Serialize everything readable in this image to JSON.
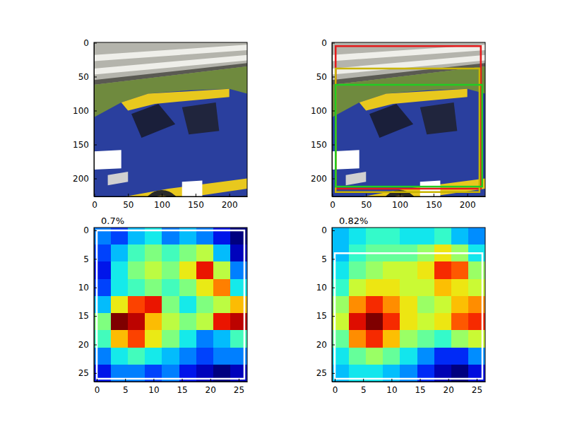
{
  "chart_data": [
    {
      "type": "image",
      "xlim": [
        -0.5,
        226.5
      ],
      "ylim": [
        226.5,
        -0.5
      ],
      "xticks": [
        0,
        50,
        100,
        150,
        200
      ],
      "yticks": [
        0,
        50,
        100,
        150,
        200
      ],
      "boxes": []
    },
    {
      "type": "image",
      "xlim": [
        -0.5,
        226.5
      ],
      "ylim": [
        226.5,
        -0.5
      ],
      "xticks": [
        0,
        50,
        100,
        150,
        200
      ],
      "yticks": [
        0,
        50,
        100,
        150,
        200
      ],
      "boxes": [
        {
          "color": "#e41a1c",
          "x0": 5,
          "y0": 5,
          "x1": 220,
          "y1": 215
        },
        {
          "color": "#c8b400",
          "x0": 5,
          "y0": 38,
          "x1": 218,
          "y1": 220
        },
        {
          "color": "#22cc22",
          "x0": 5,
          "y0": 62,
          "x1": 222,
          "y1": 212
        }
      ]
    },
    {
      "type": "heatmap",
      "title": "0.7%",
      "xlim": [
        -0.5,
        26.5
      ],
      "ylim": [
        26.5,
        -0.5
      ],
      "xticks": [
        0,
        5,
        10,
        15,
        20,
        25
      ],
      "yticks": [
        0,
        5,
        10,
        15,
        20,
        25
      ],
      "cells": [
        [
          0.3,
          0.25,
          0.35,
          0.4,
          0.3,
          0.35,
          0.3,
          0.2,
          0.1
        ],
        [
          0.25,
          0.35,
          0.45,
          0.5,
          0.45,
          0.5,
          0.55,
          0.35,
          0.15
        ],
        [
          0.2,
          0.4,
          0.5,
          0.55,
          0.5,
          0.6,
          0.8,
          0.55,
          0.3
        ],
        [
          0.25,
          0.4,
          0.45,
          0.5,
          0.45,
          0.5,
          0.6,
          0.7,
          0.4
        ],
        [
          0.35,
          0.6,
          0.75,
          0.8,
          0.5,
          0.4,
          0.5,
          0.55,
          0.65
        ],
        [
          0.5,
          0.9,
          0.85,
          0.65,
          0.55,
          0.5,
          0.55,
          0.8,
          0.85
        ],
        [
          0.45,
          0.65,
          0.75,
          0.6,
          0.5,
          0.4,
          0.3,
          0.35,
          0.45
        ],
        [
          0.3,
          0.4,
          0.45,
          0.4,
          0.35,
          0.3,
          0.25,
          0.3,
          0.3
        ],
        [
          0.2,
          0.3,
          0.3,
          0.25,
          0.3,
          0.2,
          0.15,
          0.1,
          0.15
        ]
      ],
      "boxes": [
        {
          "color": "#ffffff",
          "x0": 0,
          "y0": 0,
          "x1": 26,
          "y1": 26
        }
      ]
    },
    {
      "type": "heatmap",
      "title": "0.82%",
      "xlim": [
        -0.5,
        26.5
      ],
      "ylim": [
        26.5,
        -0.5
      ],
      "xticks": [
        0,
        5,
        10,
        15,
        20,
        25
      ],
      "yticks": [
        0,
        5,
        10,
        15,
        20,
        25
      ],
      "cells": [
        [
          0.35,
          0.4,
          0.45,
          0.45,
          0.4,
          0.4,
          0.45,
          0.35,
          0.3
        ],
        [
          0.35,
          0.45,
          0.5,
          0.5,
          0.5,
          0.55,
          0.65,
          0.55,
          0.4
        ],
        [
          0.4,
          0.5,
          0.55,
          0.6,
          0.6,
          0.65,
          0.85,
          0.8,
          0.55
        ],
        [
          0.45,
          0.6,
          0.65,
          0.65,
          0.6,
          0.6,
          0.7,
          0.65,
          0.6
        ],
        [
          0.55,
          0.75,
          0.85,
          0.75,
          0.65,
          0.55,
          0.6,
          0.7,
          0.75
        ],
        [
          0.6,
          0.9,
          1.0,
          0.85,
          0.65,
          0.6,
          0.65,
          0.8,
          0.85
        ],
        [
          0.5,
          0.75,
          0.85,
          0.7,
          0.55,
          0.5,
          0.45,
          0.55,
          0.6
        ],
        [
          0.4,
          0.5,
          0.55,
          0.5,
          0.4,
          0.3,
          0.2,
          0.2,
          0.3
        ],
        [
          0.35,
          0.4,
          0.4,
          0.35,
          0.3,
          0.2,
          0.1,
          0.05,
          0.15
        ]
      ],
      "boxes": [
        {
          "color": "#ffffff",
          "x0": 0,
          "y0": 4,
          "x1": 26,
          "y1": 26
        }
      ]
    }
  ]
}
